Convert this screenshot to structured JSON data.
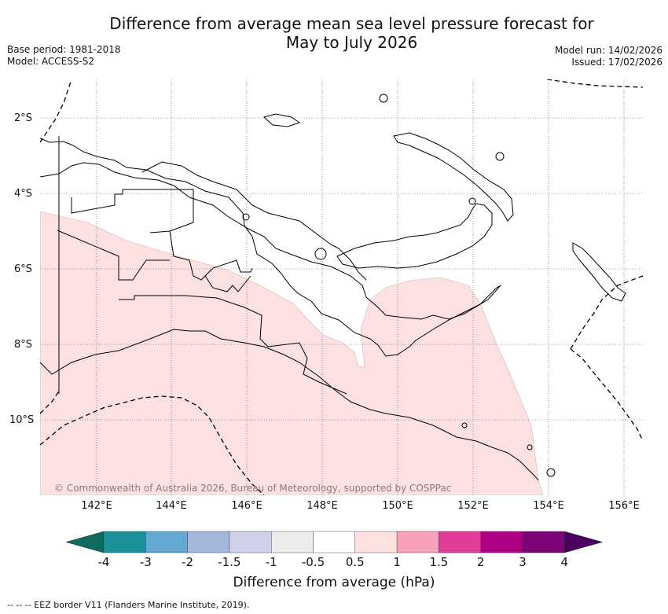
{
  "title_line1": "Difference from average mean sea level pressure forecast for",
  "title_line2": "May to July 2026",
  "base_period": "Base period: 1981-2018",
  "model": "Model: ACCESS-S2",
  "model_run": "Model run: 14/02/2026",
  "issued": "Issued: 17/02/2026",
  "copyright": "© Commonwealth of Australia 2026, Bureau of Meteorology, supported by COSPPac",
  "lat_labels": [
    "2°S",
    "4°S",
    "6°S",
    "8°S",
    "10°S"
  ],
  "lon_labels": [
    "142°E",
    "144°E",
    "146°E",
    "148°E",
    "150°E",
    "152°E",
    "154°E",
    "156°E"
  ],
  "colorbar": {
    "title": "Difference from average (hPa)",
    "ticks": [
      "-4",
      "-3",
      "-2",
      "-1.5",
      "-1",
      "-0.5",
      "0.5",
      "1",
      "1.5",
      "2",
      "3",
      "4"
    ],
    "colors": [
      "#0e6b5e",
      "#1a9199",
      "#65a8d3",
      "#a5b8db",
      "#cfd1ea",
      "#ececee",
      "#ffffff",
      "#fde0e0",
      "#f7a1bb",
      "#e03c98",
      "#ad0085",
      "#7b0577",
      "#4a0060"
    ]
  },
  "footer": "-- -- -- EEZ border V11 (Flanders Marine Institute, 2019).",
  "map": {
    "ocean_color": "#ffffff",
    "anomaly_fill_color": "#fde0e0",
    "anomaly_value_range": "0.5 to 1"
  }
}
